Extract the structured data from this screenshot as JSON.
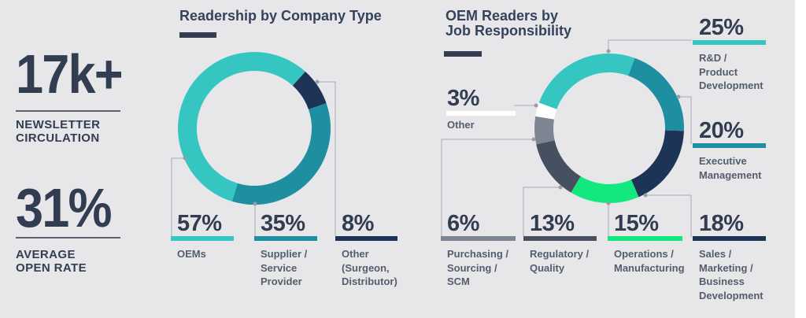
{
  "colors": {
    "background": "#E7E7E9",
    "teal": "#36C6C2",
    "medium_teal": "#1E8FA1",
    "navy": "#1E3456",
    "green": "#12E87D",
    "slate": "#475060",
    "gray": "#7D8492",
    "white": "#FFFFFF",
    "connector_line": "#A8ABB2",
    "connector_dot": "#999DA6",
    "dark_text": "#323D52"
  },
  "stats": {
    "circulation": {
      "value": "17k+",
      "label_lines": [
        "NEWSLETTER",
        "CIRCULATION"
      ]
    },
    "open_rate": {
      "value": "31%",
      "label_lines": [
        "AVERAGE",
        "OPEN RATE"
      ]
    }
  },
  "chart1": {
    "title": "Readership by Company Type",
    "labels": [
      {
        "pct": "57%",
        "color": "#36C6C2",
        "lines": [
          "OEMs"
        ]
      },
      {
        "pct": "35%",
        "color": "#1E8FA1",
        "lines": [
          "Supplier /",
          "Service",
          "Provider"
        ]
      },
      {
        "pct": "8%",
        "color": "#1E3456",
        "lines": [
          "Other",
          "(Surgeon,",
          "Distributor)"
        ]
      }
    ]
  },
  "chart2": {
    "title_lines": [
      "OEM Readers by",
      "Job Responsibility"
    ],
    "labels": [
      {
        "pct": "25%",
        "color": "#36C6C2",
        "lines": [
          "R&D / Product",
          "Development"
        ]
      },
      {
        "pct": "20%",
        "color": "#1E8FA1",
        "lines": [
          "Executive",
          "Management"
        ]
      },
      {
        "pct": "18%",
        "color": "#1E3456",
        "lines": [
          "Sales /",
          "Marketing /",
          "Business",
          "Development"
        ]
      },
      {
        "pct": "15%",
        "color": "#12E87D",
        "lines": [
          "Operations /",
          "Manufacturing"
        ]
      },
      {
        "pct": "13%",
        "color": "#475060",
        "lines": [
          "Regulatory /",
          "Quality"
        ]
      },
      {
        "pct": "6%",
        "color": "#7D8492",
        "lines": [
          "Purchasing /",
          "Sourcing /",
          "SCM"
        ]
      },
      {
        "pct": "3%",
        "color": "#FFFFFF",
        "lines": [
          "Other"
        ]
      }
    ]
  },
  "chart_data": [
    {
      "type": "pie",
      "variant": "donut",
      "title": "Readership by Company Type",
      "unit": "%",
      "categories": [
        "OEMs",
        "Supplier / Service Provider",
        "Other (Surgeon, Distributor)"
      ],
      "values": [
        57,
        35,
        8
      ],
      "colors": [
        "#36C6C2",
        "#1E8FA1",
        "#1E3456"
      ],
      "legend_position": "below",
      "start_angle_deg": 196.8,
      "clockwise_sequence": [
        0,
        2,
        1
      ]
    },
    {
      "type": "pie",
      "variant": "donut",
      "title": "OEM Readers by Job Responsibility",
      "unit": "%",
      "categories": [
        "R&D / Product Development",
        "Executive Management",
        "Sales / Marketing / Business Development",
        "Operations / Manufacturing",
        "Regulatory / Quality",
        "Purchasing / Sourcing / SCM",
        "Other"
      ],
      "values": [
        25,
        20,
        18,
        15,
        13,
        6,
        3
      ],
      "colors": [
        "#36C6C2",
        "#1E8FA1",
        "#1E3456",
        "#12E87D",
        "#475060",
        "#7D8492",
        "#FFFFFF"
      ],
      "legend_position": "around",
      "start_angle_deg": -70,
      "clockwise_sequence": [
        0,
        1,
        2,
        3,
        4,
        5,
        6
      ]
    }
  ]
}
